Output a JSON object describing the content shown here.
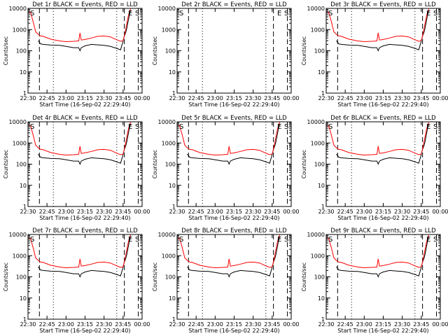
{
  "chart_data": [
    {
      "type": "line",
      "title": "Det 1r  BLACK = Events, RED = LLD",
      "xlabel": "Start Time (16-Sep-02 22:29:40)",
      "ylabel": "Counts/sec",
      "xlim": [
        0,
        5400
      ],
      "ylim": [
        1,
        10000
      ],
      "yscale": "log",
      "xticks": [
        "22:30",
        "22:45",
        "23:00",
        "23:15",
        "23:30",
        "23:45",
        "00:00"
      ],
      "yticks": [
        "1",
        "10",
        "100",
        "1000",
        "10000"
      ],
      "flags": [
        "S",
        "E",
        "S"
      ],
      "x": [
        0,
        120,
        240,
        360,
        480,
        600,
        720,
        1080,
        1500,
        1800,
        2160,
        2400,
        2460,
        2520,
        2700,
        3000,
        3300,
        3600,
        3900,
        4200,
        4380,
        4500,
        4560,
        4620,
        4680,
        4740,
        4800,
        4860,
        4920,
        5040,
        5160
      ],
      "series": [
        {
          "name": "BLACK",
          "color": "#000000",
          "values": [
            null,
            null,
            null,
            null,
            300,
            210,
            200,
            185,
            180,
            160,
            140,
            140,
            100,
            140,
            170,
            200,
            190,
            180,
            160,
            130,
            110,
            280,
            500,
            700,
            1200,
            2500,
            5000,
            8000,
            null,
            null,
            null
          ]
        },
        {
          "name": "RED",
          "color": "#ff0000",
          "values": [
            7000,
            6500,
            2500,
            800,
            600,
            500,
            480,
            350,
            290,
            270,
            280,
            290,
            700,
            320,
            340,
            400,
            480,
            500,
            450,
            330,
            280,
            300,
            500,
            1000,
            2000,
            4000,
            7000,
            9500,
            null,
            null,
            null
          ]
        }
      ]
    },
    {
      "type": "line",
      "title": "Det 2r  BLACK = Events, RED = LLD",
      "xlabel": "Start Time (16-Sep-02 22:29:40)",
      "ylabel": "Counts/sec",
      "xlim": [
        0,
        5400
      ],
      "ylim": [
        1,
        10000
      ],
      "yscale": "log",
      "xticks": [
        "22:30",
        "22:45",
        "23:00",
        "23:15",
        "23:30",
        "23:45",
        "00:00"
      ],
      "yticks": [
        "1",
        "10",
        "100",
        "1000",
        "10000"
      ],
      "flags": [
        "S",
        "E",
        "S"
      ],
      "x": [],
      "series": [
        {
          "name": "BLACK",
          "color": "#000000",
          "values": []
        },
        {
          "name": "RED",
          "color": "#ff0000",
          "values": []
        }
      ]
    },
    {
      "type": "line",
      "title": "Det 3r  BLACK = Events, RED = LLD",
      "xlabel": "Start Time (16-Sep-02 22:29:40)",
      "ylabel": "Counts/sec",
      "xlim": [
        0,
        5400
      ],
      "ylim": [
        1,
        10000
      ],
      "yscale": "log",
      "xticks": [
        "22:30",
        "22:45",
        "23:00",
        "23:15",
        "23:30",
        "23:45",
        "00:00"
      ],
      "yticks": [
        "1",
        "10",
        "100",
        "1000",
        "10000"
      ],
      "flags": [
        "S",
        "E",
        "S"
      ],
      "x": [
        0,
        120,
        240,
        360,
        480,
        600,
        720,
        1080,
        1500,
        1800,
        2160,
        2400,
        2460,
        2520,
        2700,
        3000,
        3300,
        3600,
        3900,
        4200,
        4380,
        4500,
        4560,
        4620,
        4680,
        4740,
        4800,
        4860,
        4920,
        5040,
        5160
      ],
      "series": [
        {
          "name": "BLACK",
          "color": "#000000",
          "values": [
            null,
            null,
            null,
            null,
            300,
            210,
            200,
            185,
            180,
            160,
            140,
            140,
            100,
            140,
            170,
            200,
            190,
            180,
            160,
            130,
            110,
            280,
            500,
            700,
            1200,
            2500,
            5000,
            8000,
            null,
            null,
            null
          ]
        },
        {
          "name": "RED",
          "color": "#ff0000",
          "values": [
            7000,
            6500,
            2500,
            800,
            600,
            500,
            480,
            350,
            290,
            270,
            280,
            290,
            700,
            320,
            340,
            400,
            480,
            500,
            450,
            330,
            280,
            300,
            500,
            1000,
            2000,
            4000,
            7000,
            9500,
            null,
            null,
            null
          ]
        }
      ]
    },
    {
      "type": "line",
      "title": "Det 4r  BLACK = Events, RED = LLD",
      "xlabel": "Start Time (16-Sep-02 22:29:40)",
      "ylabel": "Counts/sec",
      "xlim": [
        0,
        5400
      ],
      "ylim": [
        1,
        10000
      ],
      "yscale": "log",
      "xticks": [
        "22:30",
        "22:45",
        "23:00",
        "23:15",
        "23:30",
        "23:45",
        "00:00"
      ],
      "yticks": [
        "1",
        "10",
        "100",
        "1000",
        "10000"
      ],
      "flags": [
        "S",
        "E",
        "S"
      ],
      "x": [
        0,
        120,
        240,
        360,
        480,
        600,
        720,
        1080,
        1500,
        1800,
        2160,
        2400,
        2460,
        2520,
        2700,
        3000,
        3300,
        3600,
        3900,
        4200,
        4380,
        4500,
        4560,
        4620,
        4680,
        4740,
        4800,
        4860,
        4920,
        5040,
        5160
      ],
      "series": [
        {
          "name": "BLACK",
          "color": "#000000",
          "values": [
            null,
            null,
            null,
            null,
            300,
            210,
            200,
            185,
            180,
            160,
            140,
            140,
            100,
            140,
            170,
            200,
            190,
            180,
            160,
            130,
            110,
            280,
            500,
            700,
            1200,
            2500,
            5000,
            8000,
            null,
            null,
            null
          ]
        },
        {
          "name": "RED",
          "color": "#ff0000",
          "values": [
            7000,
            6500,
            2500,
            800,
            600,
            500,
            480,
            350,
            290,
            270,
            280,
            290,
            700,
            320,
            340,
            400,
            480,
            500,
            450,
            330,
            280,
            300,
            500,
            1000,
            2000,
            4000,
            7000,
            9500,
            null,
            null,
            null
          ]
        }
      ]
    },
    {
      "type": "line",
      "title": "Det 5r  BLACK = Events, RED = LLD",
      "xlabel": "Start Time (16-Sep-02 22:29:40)",
      "ylabel": "Counts/sec",
      "xlim": [
        0,
        5400
      ],
      "ylim": [
        1,
        10000
      ],
      "yscale": "log",
      "xticks": [
        "22:30",
        "22:45",
        "23:00",
        "23:15",
        "23:30",
        "23:45",
        "00:00"
      ],
      "yticks": [
        "1",
        "10",
        "100",
        "1000",
        "10000"
      ],
      "flags": [
        "S",
        "E",
        "S"
      ],
      "x": [
        0,
        120,
        240,
        360,
        480,
        600,
        720,
        1080,
        1500,
        1800,
        2160,
        2400,
        2460,
        2520,
        2700,
        3000,
        3300,
        3600,
        3900,
        4200,
        4380,
        4500,
        4560,
        4620,
        4680,
        4740,
        4800,
        4860,
        4920,
        5040,
        5160
      ],
      "series": [
        {
          "name": "BLACK",
          "color": "#000000",
          "values": [
            null,
            null,
            null,
            null,
            300,
            210,
            200,
            185,
            180,
            160,
            140,
            140,
            100,
            140,
            170,
            200,
            190,
            180,
            160,
            130,
            110,
            280,
            500,
            700,
            1200,
            2500,
            5000,
            8000,
            null,
            null,
            null
          ]
        },
        {
          "name": "RED",
          "color": "#ff0000",
          "values": [
            7000,
            6500,
            2500,
            800,
            600,
            500,
            480,
            350,
            290,
            270,
            280,
            290,
            700,
            320,
            340,
            400,
            480,
            500,
            450,
            330,
            280,
            300,
            500,
            1000,
            2000,
            4000,
            7000,
            9500,
            null,
            null,
            null
          ]
        }
      ]
    },
    {
      "type": "line",
      "title": "Det 6r  BLACK = Events, RED = LLD",
      "xlabel": "Start Time (16-Sep-02 22:29:40)",
      "ylabel": "Counts/sec",
      "xlim": [
        0,
        5400
      ],
      "ylim": [
        1,
        10000
      ],
      "yscale": "log",
      "xticks": [
        "22:30",
        "22:45",
        "23:00",
        "23:15",
        "23:30",
        "23:45",
        "00:00"
      ],
      "yticks": [
        "1",
        "10",
        "100",
        "1000",
        "10000"
      ],
      "flags": [
        "S",
        "E",
        "S"
      ],
      "x": [
        0,
        120,
        240,
        360,
        480,
        600,
        720,
        1080,
        1500,
        1800,
        2160,
        2400,
        2460,
        2520,
        2700,
        3000,
        3300,
        3600,
        3900,
        4200,
        4380,
        4500,
        4560,
        4620,
        4680,
        4740,
        4800,
        4860,
        4920,
        5040,
        5160
      ],
      "series": [
        {
          "name": "BLACK",
          "color": "#000000",
          "values": [
            null,
            null,
            null,
            null,
            300,
            210,
            200,
            185,
            180,
            160,
            140,
            140,
            100,
            140,
            170,
            200,
            190,
            180,
            160,
            130,
            110,
            280,
            500,
            700,
            1200,
            2500,
            5000,
            8000,
            null,
            null,
            null
          ]
        },
        {
          "name": "RED",
          "color": "#ff0000",
          "values": [
            7000,
            6500,
            2500,
            800,
            600,
            500,
            480,
            350,
            290,
            270,
            280,
            290,
            700,
            320,
            340,
            400,
            480,
            500,
            450,
            330,
            280,
            300,
            500,
            1000,
            2000,
            4000,
            7000,
            9500,
            null,
            null,
            null
          ]
        }
      ]
    },
    {
      "type": "line",
      "title": "Det 7r  BLACK = Events, RED = LLD",
      "xlabel": "Start Time (16-Sep-02 22:29:40)",
      "ylabel": "Counts/sec",
      "xlim": [
        0,
        5400
      ],
      "ylim": [
        1,
        10000
      ],
      "yscale": "log",
      "xticks": [
        "22:30",
        "22:45",
        "23:00",
        "23:15",
        "23:30",
        "23:45",
        "00:00"
      ],
      "yticks": [
        "1",
        "10",
        "100",
        "1000",
        "10000"
      ],
      "flags": [
        "S",
        "E",
        "S"
      ],
      "x": [
        0,
        120,
        240,
        360,
        480,
        600,
        720,
        1080,
        1500,
        1800,
        2160,
        2400,
        2460,
        2520,
        2700,
        3000,
        3300,
        3600,
        3900,
        4200,
        4380,
        4500,
        4560,
        4620,
        4680,
        4740,
        4800,
        4860,
        4920,
        5040,
        5160
      ],
      "series": [
        {
          "name": "BLACK",
          "color": "#000000",
          "values": [
            null,
            null,
            null,
            null,
            300,
            210,
            200,
            185,
            180,
            160,
            140,
            140,
            100,
            140,
            170,
            200,
            190,
            180,
            160,
            130,
            110,
            280,
            500,
            700,
            1200,
            2500,
            5000,
            8000,
            null,
            null,
            null
          ]
        },
        {
          "name": "RED",
          "color": "#ff0000",
          "values": [
            7000,
            6500,
            2500,
            800,
            600,
            500,
            480,
            350,
            290,
            270,
            280,
            290,
            700,
            320,
            340,
            400,
            480,
            500,
            450,
            330,
            280,
            300,
            500,
            1000,
            2000,
            4000,
            7000,
            9500,
            null,
            null,
            null
          ]
        }
      ]
    },
    {
      "type": "line",
      "title": "Det 8r  BLACK = Events, RED = LLD",
      "xlabel": "Start Time (16-Sep-02 22:29:40)",
      "ylabel": "Counts/sec",
      "xlim": [
        0,
        5400
      ],
      "ylim": [
        1,
        10000
      ],
      "yscale": "log",
      "xticks": [
        "22:30",
        "22:45",
        "23:00",
        "23:15",
        "23:30",
        "23:45",
        "00:00"
      ],
      "yticks": [
        "1",
        "10",
        "100",
        "1000",
        "10000"
      ],
      "flags": [
        "S",
        "E",
        "S"
      ],
      "x": [
        0,
        120,
        240,
        360,
        480,
        600,
        720,
        1080,
        1500,
        1800,
        2160,
        2400,
        2460,
        2520,
        2700,
        3000,
        3300,
        3600,
        3900,
        4200,
        4380,
        4500,
        4560,
        4620,
        4680,
        4740,
        4800,
        4860,
        4920,
        5040,
        5160
      ],
      "series": [
        {
          "name": "BLACK",
          "color": "#000000",
          "values": [
            null,
            null,
            null,
            null,
            300,
            210,
            200,
            185,
            180,
            160,
            140,
            140,
            100,
            140,
            170,
            200,
            190,
            180,
            160,
            130,
            110,
            280,
            500,
            700,
            1200,
            2500,
            5000,
            8000,
            null,
            null,
            null
          ]
        },
        {
          "name": "RED",
          "color": "#ff0000",
          "values": [
            7000,
            6500,
            2500,
            800,
            600,
            500,
            480,
            350,
            290,
            270,
            280,
            290,
            700,
            320,
            340,
            400,
            480,
            500,
            450,
            330,
            280,
            300,
            500,
            1000,
            2000,
            4000,
            7000,
            9500,
            null,
            null,
            null
          ]
        }
      ]
    },
    {
      "type": "line",
      "title": "Det 9r  BLACK = Events, RED = LLD",
      "xlabel": "Start Time (16-Sep-02 22:29:40)",
      "ylabel": "Counts/sec",
      "xlim": [
        0,
        5400
      ],
      "ylim": [
        1,
        10000
      ],
      "yscale": "log",
      "xticks": [
        "22:30",
        "22:45",
        "23:00",
        "23:15",
        "23:30",
        "23:45",
        "00:00"
      ],
      "yticks": [
        "1",
        "10",
        "100",
        "1000",
        "10000"
      ],
      "flags": [
        "S",
        "E",
        "S"
      ],
      "x": [
        0,
        120,
        240,
        360,
        480,
        600,
        720,
        1080,
        1500,
        1800,
        2160,
        2400,
        2460,
        2520,
        2700,
        3000,
        3300,
        3600,
        3900,
        4200,
        4380,
        4500,
        4560,
        4620,
        4680,
        4740,
        4800,
        4860,
        4920,
        5040,
        5160
      ],
      "series": [
        {
          "name": "BLACK",
          "color": "#000000",
          "values": [
            null,
            null,
            null,
            null,
            300,
            210,
            200,
            185,
            180,
            160,
            140,
            140,
            100,
            140,
            170,
            200,
            190,
            180,
            160,
            130,
            110,
            280,
            500,
            700,
            1200,
            2500,
            5000,
            8000,
            null,
            null,
            null
          ]
        },
        {
          "name": "RED",
          "color": "#ff0000",
          "values": [
            7000,
            6500,
            2500,
            800,
            600,
            500,
            480,
            350,
            290,
            270,
            280,
            290,
            700,
            320,
            340,
            400,
            480,
            500,
            450,
            330,
            280,
            300,
            500,
            1000,
            2000,
            4000,
            7000,
            9500,
            null,
            null,
            null
          ]
        }
      ]
    }
  ]
}
